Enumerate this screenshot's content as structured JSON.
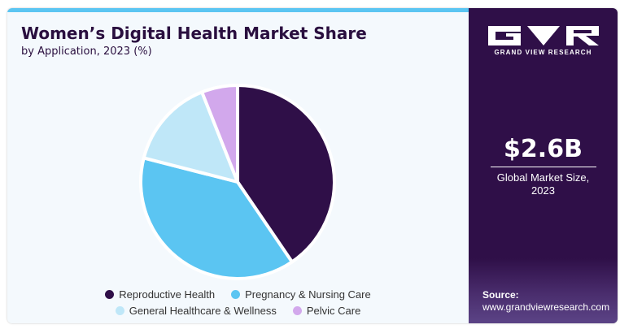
{
  "header": {
    "title": "Women’s Digital Health Market Share",
    "subtitle": "by Application, 2023 (%)"
  },
  "chart_data": {
    "type": "pie",
    "categories": [
      "Reproductive Health",
      "Pregnancy & Nursing Care",
      "General Healthcare & Wellness",
      "Pelvic Care"
    ],
    "values": [
      40.5,
      38.5,
      15.0,
      6.0
    ],
    "colors": [
      "#2f0f48",
      "#5bc5f2",
      "#bfe7f8",
      "#d2a8ec"
    ],
    "legend_position": "bottom",
    "separator_color": "#ffffff"
  },
  "legend": {
    "row1": [
      "Reproductive Health",
      "Pregnancy & Nursing Care"
    ],
    "row2": [
      "General Healthcare & Wellness",
      "Pelvic Care"
    ]
  },
  "brand": {
    "name": "GRAND VIEW RESEARCH",
    "logo_icon": "gvr-logo-icon",
    "panel_color": "#2f0f48",
    "accent_color": "#5bc5f2"
  },
  "market": {
    "value": "$2.6B",
    "label_line1": "Global Market Size,",
    "label_line2": "2023"
  },
  "source": {
    "label": "Source:",
    "url": "www.grandviewresearch.com"
  }
}
